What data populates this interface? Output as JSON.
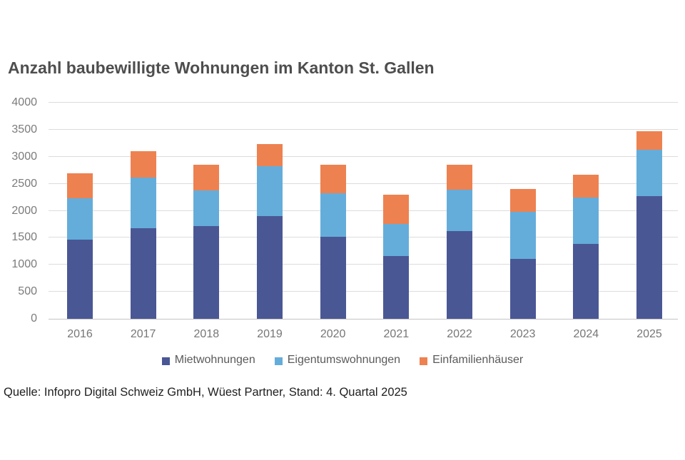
{
  "page": {
    "source_note": "Quelle: Infopro Digital Schweiz GmbH, Wüest Partner, Stand: 4. Quartal 2025"
  },
  "chart_data": {
    "type": "bar",
    "stacked": true,
    "title": "Anzahl baubewilligte Wohnungen im Kanton St. Gallen",
    "categories": [
      "2016",
      "2017",
      "2018",
      "2019",
      "2020",
      "2021",
      "2022",
      "2023",
      "2024",
      "2025"
    ],
    "series": [
      {
        "name": "Mietwohnungen",
        "color": "#4a5795",
        "values": [
          1460,
          1680,
          1710,
          1900,
          1520,
          1160,
          1620,
          1110,
          1390,
          2270
        ]
      },
      {
        "name": "Eigentumswohnungen",
        "color": "#64addb",
        "values": [
          770,
          930,
          670,
          920,
          810,
          600,
          770,
          870,
          850,
          860
        ]
      },
      {
        "name": "Einfamilienhäuser",
        "color": "#ee8150",
        "values": [
          470,
          490,
          470,
          410,
          520,
          540,
          460,
          420,
          430,
          340
        ]
      }
    ],
    "totals": [
      2700,
      3100,
      2850,
      3230,
      2850,
      2300,
      2850,
      2400,
      2670,
      3470
    ],
    "xlabel": "",
    "ylabel": "",
    "ylim": [
      0,
      4000
    ],
    "ytick_step": 500,
    "grid": true,
    "legend_position": "bottom",
    "gridline_color": "#dcdcdc",
    "axis_label_color": "#7b7b7b",
    "title_color": "#4e4e4e"
  }
}
